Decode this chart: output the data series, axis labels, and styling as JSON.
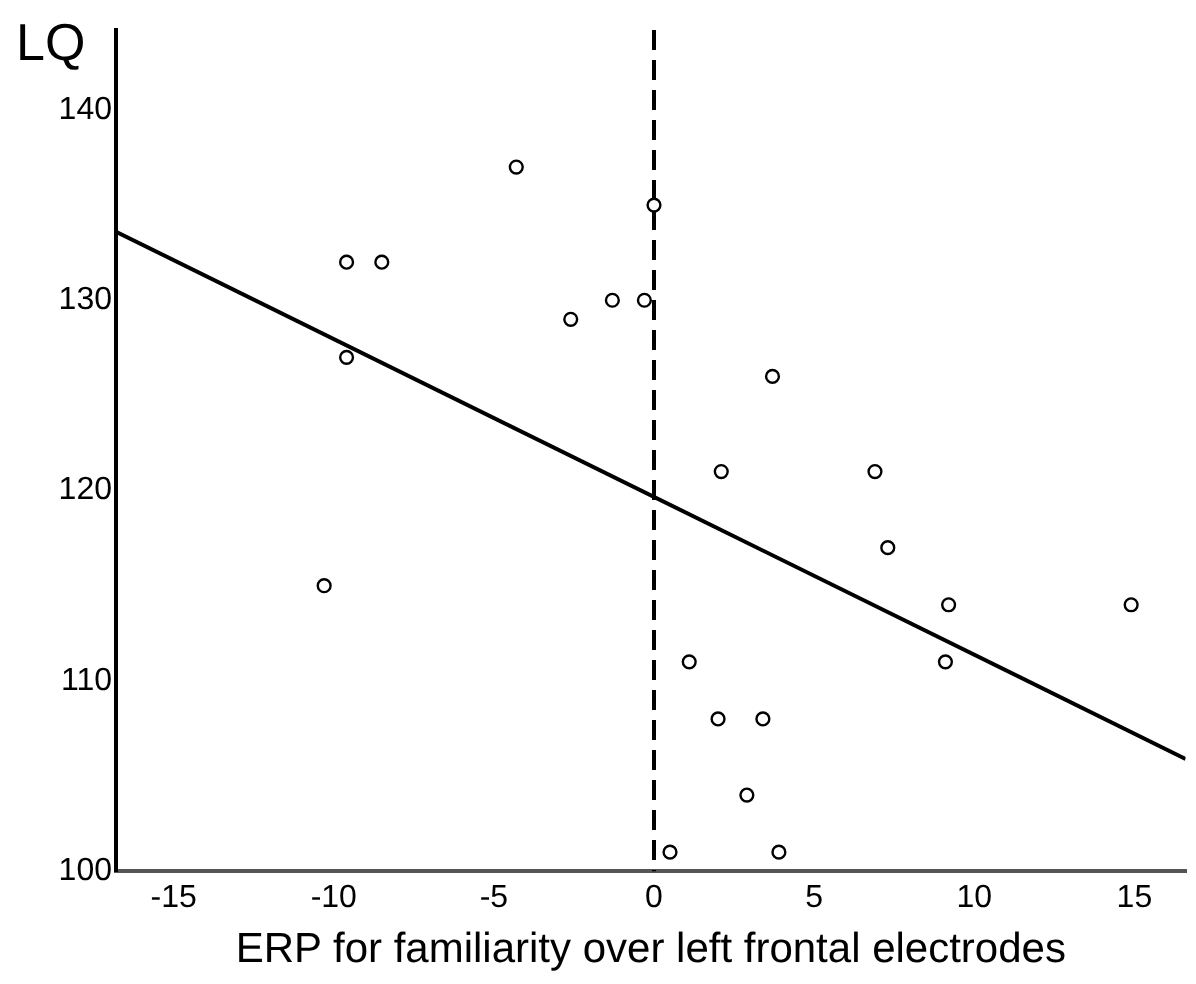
{
  "chart_data": {
    "type": "scatter",
    "xlabel": "ERP for familiarity over left frontal electrodes",
    "ylabel": "LQ",
    "xlim": [
      -16.8,
      16.6
    ],
    "ylim": [
      100,
      144.2
    ],
    "xticks": [
      -15,
      -10,
      -5,
      0,
      5,
      10,
      15
    ],
    "yticks": [
      100,
      110,
      120,
      130,
      140
    ],
    "grid": false,
    "legend": false,
    "marker": "circle",
    "ref_lines": [
      {
        "axis": "x",
        "value": 0,
        "color": "#000000",
        "line_style": "dashed"
      }
    ],
    "series": [
      {
        "color": "#000000",
        "x": [
          -4.3,
          0,
          -9.6,
          -8.5,
          -2.6,
          -1.3,
          -0.3,
          -9.6,
          -10.3,
          3.7,
          2.1,
          6.9,
          7.3,
          9.2,
          14.9,
          1.1,
          9.1,
          2.0,
          3.4,
          2.9,
          0.5,
          3.9
        ],
        "values": [
          137,
          135,
          132,
          132,
          129,
          130,
          130,
          127,
          115,
          126,
          121,
          121,
          117,
          114,
          114,
          111,
          111,
          108,
          108,
          104,
          101,
          101
        ]
      },
      {
        "type": "line",
        "color": "#000000",
        "marker": "none",
        "line_style": "solid",
        "x": [
          -16.8,
          16.6
        ],
        "values": [
          133.6,
          105.9
        ]
      }
    ]
  }
}
